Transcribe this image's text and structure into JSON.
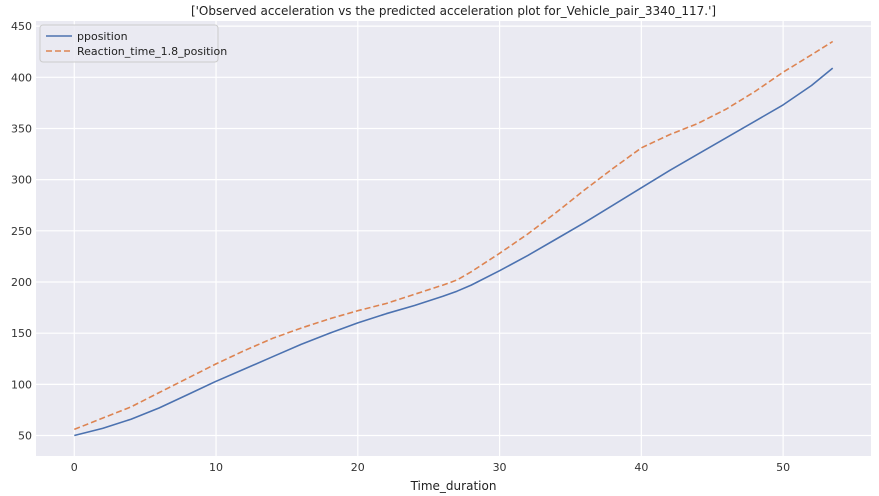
{
  "chart_data": {
    "type": "line",
    "title": "['Observed acceleration vs the predicted acceleration plot for_Vehicle_pair_3340_117.']",
    "xlabel": "Time_duration",
    "ylabel": "",
    "xlim": [
      -2.7,
      56.2
    ],
    "ylim": [
      30,
      455
    ],
    "x_ticks": [
      0,
      10,
      20,
      30,
      40,
      50
    ],
    "y_ticks": [
      50,
      100,
      150,
      200,
      250,
      300,
      350,
      400,
      450
    ],
    "grid": true,
    "legend_position": "top-left",
    "colors": {
      "background": "#eaeaf2",
      "grid": "#ffffff"
    },
    "series": [
      {
        "name": "pposition",
        "color": "#4c72b0",
        "style": "solid",
        "x": [
          0,
          2,
          4,
          6,
          8,
          10,
          12,
          14,
          16,
          18,
          20,
          22,
          24,
          26,
          27,
          28,
          30,
          32,
          34,
          36,
          38,
          40,
          42,
          44,
          46,
          48,
          50,
          52,
          53.5
        ],
        "y": [
          50,
          57,
          66,
          77,
          90,
          103,
          115,
          127,
          139,
          150,
          160,
          169,
          177,
          186,
          191,
          197,
          211,
          226,
          242,
          258,
          275,
          292,
          309,
          325,
          341,
          357,
          373,
          392,
          409
        ]
      },
      {
        "name": "Reaction_time_1.8_position",
        "color": "#dd8452",
        "style": "dashed",
        "x": [
          0,
          2,
          4,
          6,
          8,
          10,
          12,
          14,
          16,
          18,
          20,
          22,
          24,
          26,
          27,
          28,
          30,
          32,
          34,
          36,
          38,
          40,
          42,
          44,
          46,
          48,
          50,
          52,
          53.5
        ],
        "y": [
          56,
          67,
          78,
          92,
          106,
          120,
          133,
          145,
          155,
          164,
          172,
          179,
          188,
          197,
          202,
          210,
          228,
          247,
          268,
          290,
          311,
          331,
          344,
          355,
          369,
          386,
          405,
          422,
          435
        ]
      }
    ]
  }
}
